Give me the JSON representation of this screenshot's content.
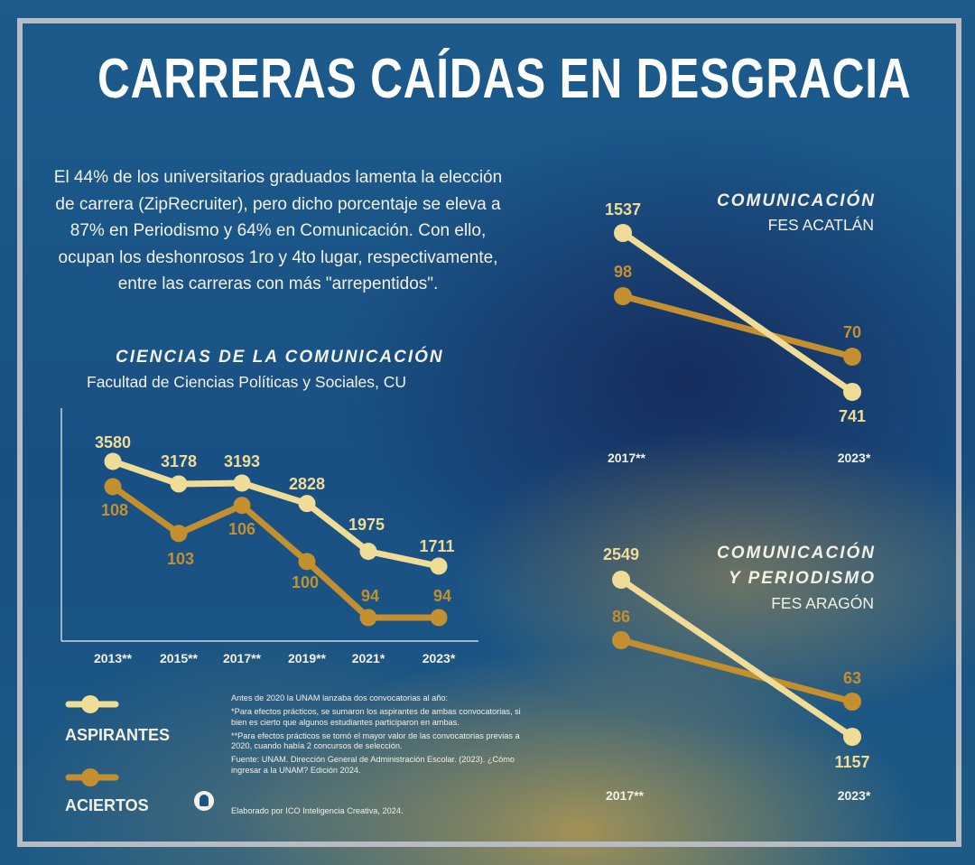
{
  "title": "CARRERAS CAÍDAS EN DESGRACIA",
  "intro": "El 44% de los universitarios graduados lamenta la elección de carrera (ZipRecruiter), pero dicho porcentaje se eleva a 87% en Periodismo y 64% en Comunicación. Con ello, ocupan los deshonrosos 1ro y 4to lugar, respectivamente, entre las carreras con más \"arrepentidos\".",
  "colors": {
    "aspirantes": "#efdc96",
    "aciertos": "#c48f2e"
  },
  "chart_data": [
    {
      "type": "line",
      "title": "CIENCIAS DE LA COMUNICACIÓN",
      "subtitle": "Facultad de Ciencias Políticas y Sociales, CU",
      "categories": [
        "2013**",
        "2015**",
        "2017**",
        "2019**",
        "2021*",
        "2023*"
      ],
      "series": [
        {
          "name": "ASPIRANTES",
          "values": [
            3580,
            3178,
            3193,
            2828,
            1975,
            1711
          ]
        },
        {
          "name": "ACIERTOS",
          "values": [
            108,
            103,
            106,
            100,
            94,
            94
          ]
        }
      ]
    },
    {
      "type": "line",
      "title": "COMUNICACIÓN",
      "subtitle": "FES ACATLÁN",
      "categories": [
        "2017**",
        "2023*"
      ],
      "series": [
        {
          "name": "ASPIRANTES",
          "values": [
            1537,
            741
          ]
        },
        {
          "name": "ACIERTOS",
          "values": [
            98,
            70
          ]
        }
      ]
    },
    {
      "type": "line",
      "title": "COMUNICACIÓN Y PERIODISMO",
      "subtitle": "FES ARAGÓN",
      "categories": [
        "2017**",
        "2023*"
      ],
      "series": [
        {
          "name": "ASPIRANTES",
          "values": [
            2549,
            1157
          ]
        },
        {
          "name": "ACIERTOS",
          "values": [
            86,
            63
          ]
        }
      ]
    }
  ],
  "chart3_title_line1": "COMUNICACIÓN",
  "chart3_title_line2": "Y PERIODISMO",
  "legend": {
    "aspirantes": "ASPIRANTES",
    "aciertos": "ACIERTOS"
  },
  "notes": {
    "n1": "Antes de 2020 la UNAM lanzaba dos convocatorias al año:",
    "n2": "*Para efectos prácticos, se sumaron los aspirantes de ambas convocatorias, si bien es cierto que algunos estudiantes participaron en ambas.",
    "n3": "**Para efectos prácticos se tomó el mayor valor de las convocatorias previas a 2020, cuando había 2 concursos de selección.",
    "n4": "Fuente: UNAM. Dirección General de Administración Escolar. (2023). ¿Cómo ingresar a la UNAM? Edición 2024.",
    "credit": "Elaborado por ICO Inteligencia Creativa, 2024."
  }
}
